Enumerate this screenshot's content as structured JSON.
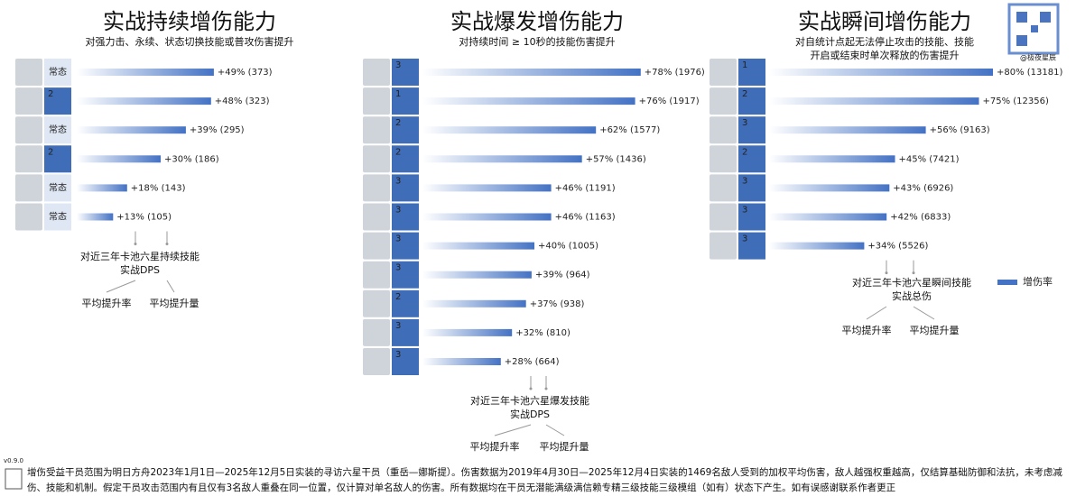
{
  "chart_data": [
    {
      "type": "bar",
      "title": "实战持续增伤能力",
      "subtitle": "对强力击、永续、状态切换技能或普攻伤害提升",
      "categories": [
        "常态",
        "2",
        "常态",
        "2",
        "常态",
        "常态"
      ],
      "series": [
        {
          "color": "#4472c4",
          "values": [
            49,
            48,
            39,
            30,
            18,
            13
          ],
          "value_labels": [
            "+49% (373)",
            "+48% (323)",
            "+39% (295)",
            "+30% (186)",
            "+18% (143)",
            "+13% (105)"
          ]
        }
      ],
      "xlim": [
        0,
        100
      ],
      "annotations": [
        "对近三年卡池六星持续技能\n实战DPS",
        "平均提升率",
        "平均提升量"
      ]
    },
    {
      "type": "bar",
      "title": "实战爆发增伤能力",
      "subtitle": "对持续时间 ≥ 10秒的技能伤害提升",
      "categories": [
        "3",
        "1",
        "2",
        "2",
        "3",
        "3",
        "3",
        "3",
        "2",
        "3",
        "3"
      ],
      "series": [
        {
          "color": "#4472c4",
          "values": [
            78,
            76,
            62,
            57,
            46,
            46,
            40,
            39,
            37,
            32,
            28
          ],
          "value_labels": [
            "+78% (1976)",
            "+76% (1917)",
            "+62% (1577)",
            "+57% (1436)",
            "+46% (1191)",
            "+46% (1163)",
            "+40% (1005)",
            "+39% (964)",
            "+37% (938)",
            "+32% (810)",
            "+28% (664)"
          ]
        }
      ],
      "xlim": [
        0,
        100
      ],
      "annotations": [
        "对近三年卡池六星爆发技能\n实战DPS",
        "平均提升率",
        "平均提升量"
      ]
    },
    {
      "type": "bar",
      "title": "实战瞬间增伤能力",
      "subtitle": "对自统计点起无法停止攻击的技能、技能\n开启或结束时单次释放的伤害提升",
      "categories": [
        "1",
        "2",
        "3",
        "2",
        "3",
        "3",
        "3"
      ],
      "series": [
        {
          "name": "增伤率",
          "color": "#4472c4",
          "values": [
            80,
            75,
            56,
            45,
            43,
            42,
            34
          ],
          "value_labels": [
            "+80% (13181)",
            "+75% (12356)",
            "+56% (9163)",
            "+45% (7421)",
            "+43% (6926)",
            "+42% (6833)",
            "+34% (5526)"
          ]
        }
      ],
      "xlim": [
        0,
        100
      ],
      "annotations": [
        "对近三年卡池六星瞬间技能\n实战总伤",
        "平均提升率",
        "平均提升量"
      ]
    }
  ],
  "watermark": "@极夜星辰",
  "version": "v0.9.0",
  "footnote": "增伤受益干员范围为明日方舟2023年1月1日—2025年12月5日实装的寻访六星干员（重岳—娜斯提）。伤害数据为2019年4月30日—2025年12月4日实装的1469名敌人受到的加权平均伤害，敌人越强权重越高，仅结算基础防御和法抗，未考虑减伤、技能和机制。假定干员攻击范围内有且仅有3名敌人重叠在同一位置，仅计算对单名敌人的伤害。所有数据均在干员无潜能满级满信赖专精三级技能三级模组（如有）状态下产生。如有误感谢联系作者更正"
}
